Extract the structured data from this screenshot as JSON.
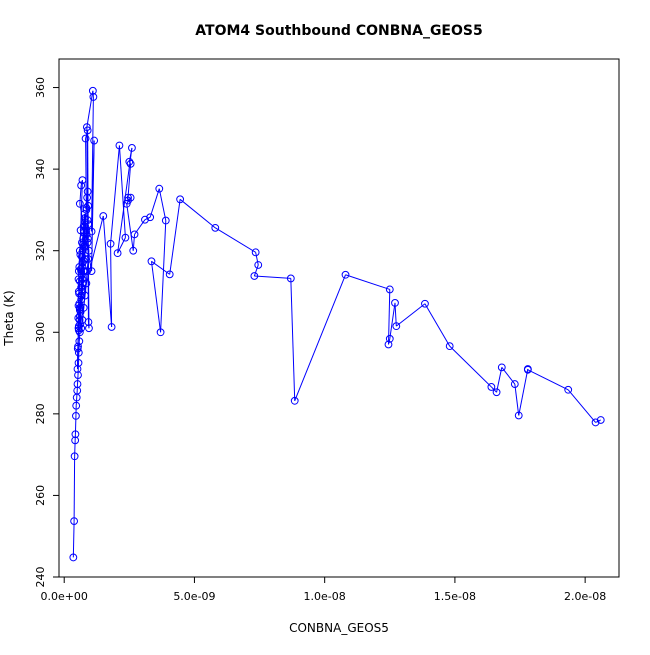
{
  "chart_data": {
    "type": "line",
    "title": "ATOM4 Southbound CONBNA_GEOS5",
    "xlabel": "CONBNA_GEOS5",
    "ylabel": "Theta (K)",
    "xlim": [
      -2e-10,
      2.13e-08
    ],
    "ylim": [
      240,
      367
    ],
    "x_ticks": [
      0,
      5e-09,
      1e-08,
      1.5e-08,
      2e-08
    ],
    "x_tick_labels": [
      "0.0e+00",
      "5.0e-09",
      "1.0e-08",
      "1.5e-08",
      "2.0e-08"
    ],
    "y_ticks": [
      240,
      260,
      280,
      300,
      320,
      340,
      360
    ],
    "y_tick_labels": [
      "240",
      "260",
      "280",
      "300",
      "320",
      "340",
      "360"
    ],
    "grid": false,
    "series_color": "#0000FF",
    "marker": "open-circle",
    "series": [
      {
        "name": "",
        "points": [
          [
            3.5e-10,
            244.8
          ],
          [
            3.8e-10,
            253.7
          ],
          [
            4e-10,
            269.6
          ],
          [
            4.2e-10,
            273.5
          ],
          [
            4.3e-10,
            275.0
          ],
          [
            4.5e-10,
            279.5
          ],
          [
            4.6e-10,
            282.0
          ],
          [
            4.8e-10,
            284.0
          ],
          [
            5e-10,
            285.7
          ],
          [
            5.1e-10,
            287.3
          ],
          [
            5.3e-10,
            289.5
          ],
          [
            5.5e-10,
            292.5
          ],
          [
            5.6e-10,
            295.0
          ],
          [
            5.8e-10,
            297.8
          ],
          [
            6e-10,
            300.0
          ],
          [
            6.2e-10,
            302.0
          ],
          [
            6.3e-10,
            305.0
          ],
          [
            6.5e-10,
            308.0
          ],
          [
            6.6e-10,
            311.0
          ],
          [
            6.8e-10,
            314.0
          ],
          [
            7e-10,
            317.0
          ],
          [
            7.1e-10,
            320.0
          ],
          [
            7.3e-10,
            323.0
          ],
          [
            7.5e-10,
            326.0
          ],
          [
            7.8e-10,
            329.0
          ],
          [
            8e-10,
            327.0
          ],
          [
            8.5e-10,
            325.0
          ],
          [
            9e-10,
            322.0
          ],
          [
            9.5e-10,
            320.0
          ],
          [
            9.2e-10,
            318.0
          ],
          [
            8.8e-10,
            315.0
          ],
          [
            8.5e-10,
            312.0
          ],
          [
            8e-10,
            309.0
          ],
          [
            7.5e-10,
            306.0
          ],
          [
            7e-10,
            303.0
          ],
          [
            6.5e-10,
            301.0
          ],
          [
            6e-10,
            304.0
          ],
          [
            5.8e-10,
            307.0
          ],
          [
            5.6e-10,
            310.0
          ],
          [
            5.5e-10,
            313.0
          ],
          [
            5.8e-10,
            316.0
          ],
          [
            6.2e-10,
            319.0
          ],
          [
            6.8e-10,
            322.0
          ],
          [
            7.5e-10,
            325.0
          ],
          [
            8e-10,
            328.0
          ],
          [
            8.5e-10,
            330.0
          ],
          [
            8.8e-10,
            333.0
          ],
          [
            9e-10,
            334.5
          ],
          [
            9.2e-10,
            331.0
          ],
          [
            9e-10,
            327.5
          ],
          [
            8.6e-10,
            324.0
          ],
          [
            8.2e-10,
            321.0
          ],
          [
            7.8e-10,
            318.0
          ],
          [
            7.4e-10,
            315.0
          ],
          [
            7e-10,
            312.0
          ],
          [
            6.6e-10,
            309.0
          ],
          [
            6.2e-10,
            306.0
          ],
          [
            5.9e-10,
            303.0
          ],
          [
            5.6e-10,
            300.5
          ],
          [
            5.4e-10,
            303.5
          ],
          [
            5.5e-10,
            306.5
          ],
          [
            5.7e-10,
            309.5
          ],
          [
            6e-10,
            312.5
          ],
          [
            6.4e-10,
            315.5
          ],
          [
            6.8e-10,
            318.5
          ],
          [
            7.2e-10,
            321.5
          ],
          [
            7.6e-10,
            324.5
          ],
          [
            8e-10,
            326.0
          ],
          [
            7.5e-10,
            321.0
          ],
          [
            7e-10,
            316.0
          ],
          [
            6.5e-10,
            311.0
          ],
          [
            6e-10,
            306.0
          ],
          [
            5.5e-10,
            301.0
          ],
          [
            5.2e-10,
            296.0
          ],
          [
            5.1e-10,
            291.0
          ],
          [
            5.3e-10,
            296.5
          ],
          [
            5.6e-10,
            301.5
          ],
          [
            6e-10,
            305.5
          ],
          [
            6.5e-10,
            309.0
          ],
          [
            7e-10,
            313.0
          ],
          [
            7.5e-10,
            317.5
          ],
          [
            8.5e-10,
            330.5
          ],
          [
            8.2e-10,
            347.5
          ],
          [
            9e-10,
            349.5
          ],
          [
            9.2e-10,
            326.5
          ],
          [
            9.5e-10,
            301.0
          ],
          [
            9.3e-10,
            302.5
          ],
          [
            9.1e-10,
            323.0
          ],
          [
            8.7e-10,
            350.3
          ],
          [
            1.1e-09,
            359.2
          ],
          [
            1.12e-09,
            357.7
          ],
          [
            1.05e-09,
            324.7
          ],
          [
            1.15e-09,
            347.0
          ],
          [
            1.05e-09,
            315.0
          ],
          [
            6e-10,
            331.5
          ],
          [
            6.5e-10,
            336.0
          ],
          [
            7e-10,
            337.3
          ],
          [
            6.3e-10,
            325.0
          ],
          [
            6e-10,
            320.0
          ],
          [
            5.6e-10,
            315.0
          ],
          [
            6.5e-10,
            315.0
          ],
          [
            7.8e-10,
            315.0
          ],
          [
            7e-10,
            310.0
          ],
          [
            6e-10,
            305.5
          ],
          [
            1.5e-09,
            328.5
          ],
          [
            1.82e-09,
            301.3
          ],
          [
            1.78e-09,
            321.7
          ],
          [
            2.12e-09,
            345.8
          ],
          [
            2.35e-09,
            323.2
          ],
          [
            2.05e-09,
            319.4
          ],
          [
            2.6e-09,
            345.2
          ],
          [
            2.5e-09,
            341.8
          ],
          [
            2.55e-09,
            341.3
          ],
          [
            2.45e-09,
            333.0
          ],
          [
            2.45e-09,
            332.3
          ],
          [
            2.55e-09,
            333.0
          ],
          [
            2.4e-09,
            331.5
          ],
          [
            2.65e-09,
            320.0
          ],
          [
            2.7e-09,
            324.0
          ],
          [
            3.1e-09,
            327.6
          ],
          [
            3.3e-09,
            328.2
          ],
          [
            3.65e-09,
            335.2
          ],
          [
            3.9e-09,
            327.4
          ],
          [
            3.7e-09,
            300.0
          ],
          [
            3.35e-09,
            317.4
          ],
          [
            4.05e-09,
            314.2
          ],
          [
            4.45e-09,
            332.6
          ],
          [
            5.8e-09,
            325.6
          ],
          [
            7.35e-09,
            319.6
          ],
          [
            7.45e-09,
            316.5
          ],
          [
            7.3e-09,
            313.8
          ],
          [
            8.7e-09,
            313.2
          ],
          [
            8.85e-09,
            283.2
          ],
          [
            1.08e-08,
            314.1
          ],
          [
            1.25e-08,
            310.5
          ],
          [
            1.245e-08,
            297.0
          ],
          [
            1.25e-08,
            298.4
          ],
          [
            1.27e-08,
            307.2
          ],
          [
            1.275e-08,
            301.5
          ],
          [
            1.385e-08,
            307.0
          ],
          [
            1.48e-08,
            296.6
          ],
          [
            1.64e-08,
            286.6
          ],
          [
            1.66e-08,
            285.3
          ],
          [
            1.68e-08,
            291.4
          ],
          [
            1.73e-08,
            287.3
          ],
          [
            1.745e-08,
            279.6
          ],
          [
            1.78e-08,
            291.0
          ],
          [
            1.78e-08,
            290.8
          ],
          [
            1.935e-08,
            285.9
          ],
          [
            2.04e-08,
            277.9
          ],
          [
            2.06e-08,
            278.5
          ]
        ]
      }
    ]
  }
}
